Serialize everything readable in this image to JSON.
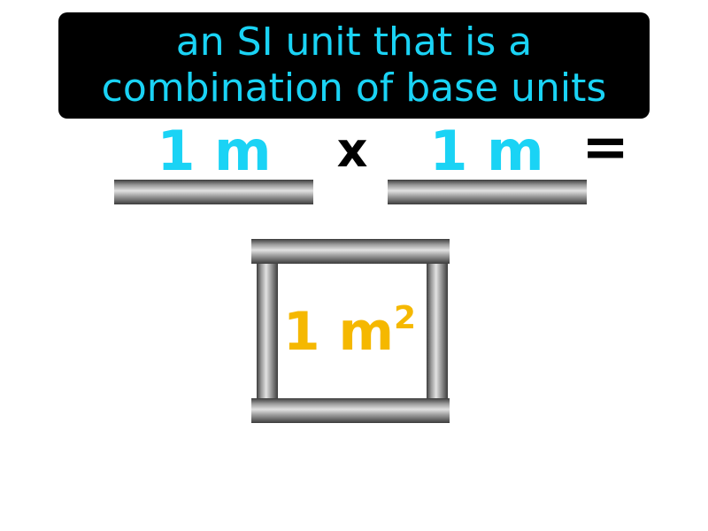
{
  "title": {
    "line1": "an SI unit that is a",
    "line2": "combination of base units"
  },
  "equation": {
    "left_length": "1 m",
    "times_symbol": "x",
    "right_length": "1 m",
    "equals_symbol": "=",
    "area_value": "1 m",
    "area_exponent": "2"
  },
  "colors": {
    "title_bg": "#000000",
    "title_text": "#1ad3f5",
    "length_text": "#1ad3f5",
    "area_text": "#f5b800",
    "operator_text": "#000000"
  }
}
